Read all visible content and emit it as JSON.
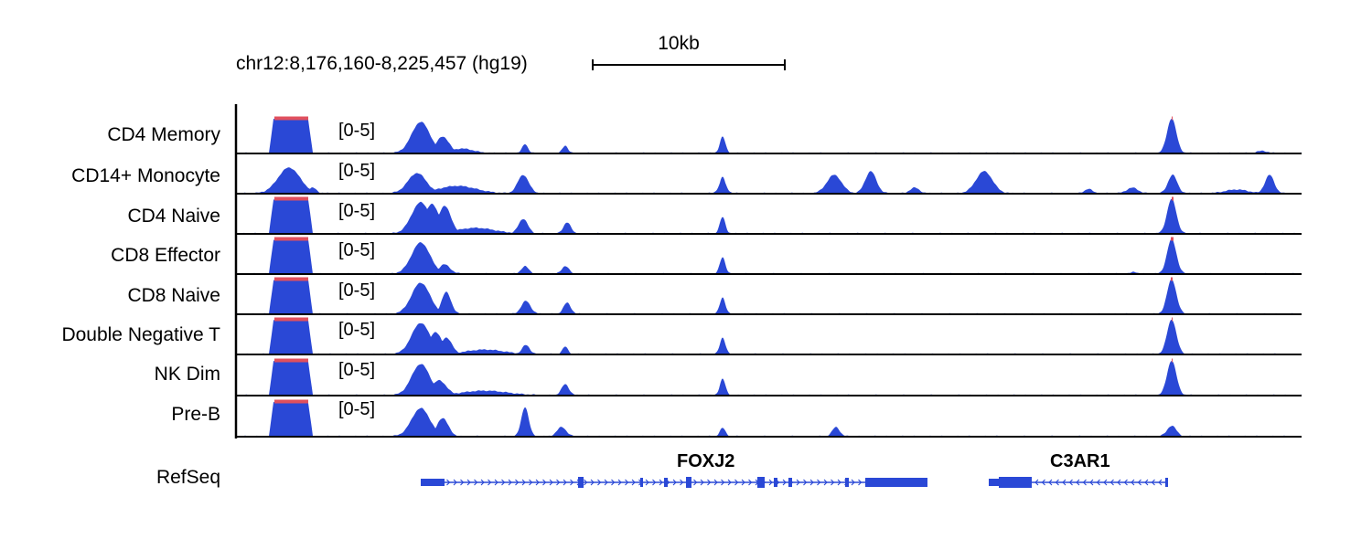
{
  "locus": "chr12:8,176,160-8,225,457 (hg19)",
  "scale_label": "10kb",
  "colors": {
    "signal": "#2a48d6",
    "clipped": "#e0505e",
    "axis": "#000000",
    "gene": "#2a48d6"
  },
  "tracks": [
    {
      "name": "CD4 Memory",
      "range": "[0-5]"
    },
    {
      "name": "CD14+ Monocyte",
      "range": "[0-5]"
    },
    {
      "name": "CD4 Naive",
      "range": "[0-5]"
    },
    {
      "name": "CD8 Effector",
      "range": "[0-5]"
    },
    {
      "name": "CD8 Naive",
      "range": "[0-5]"
    },
    {
      "name": "Double Negative T",
      "range": "[0-5]"
    },
    {
      "name": "NK Dim",
      "range": "[0-5]"
    },
    {
      "name": "Pre-B",
      "range": "[0-5]"
    }
  ],
  "refseq": {
    "label": "RefSeq",
    "genes": [
      {
        "name": "FOXJ2",
        "strand": "+"
      },
      {
        "name": "C3AR1",
        "strand": "-"
      }
    ]
  }
}
